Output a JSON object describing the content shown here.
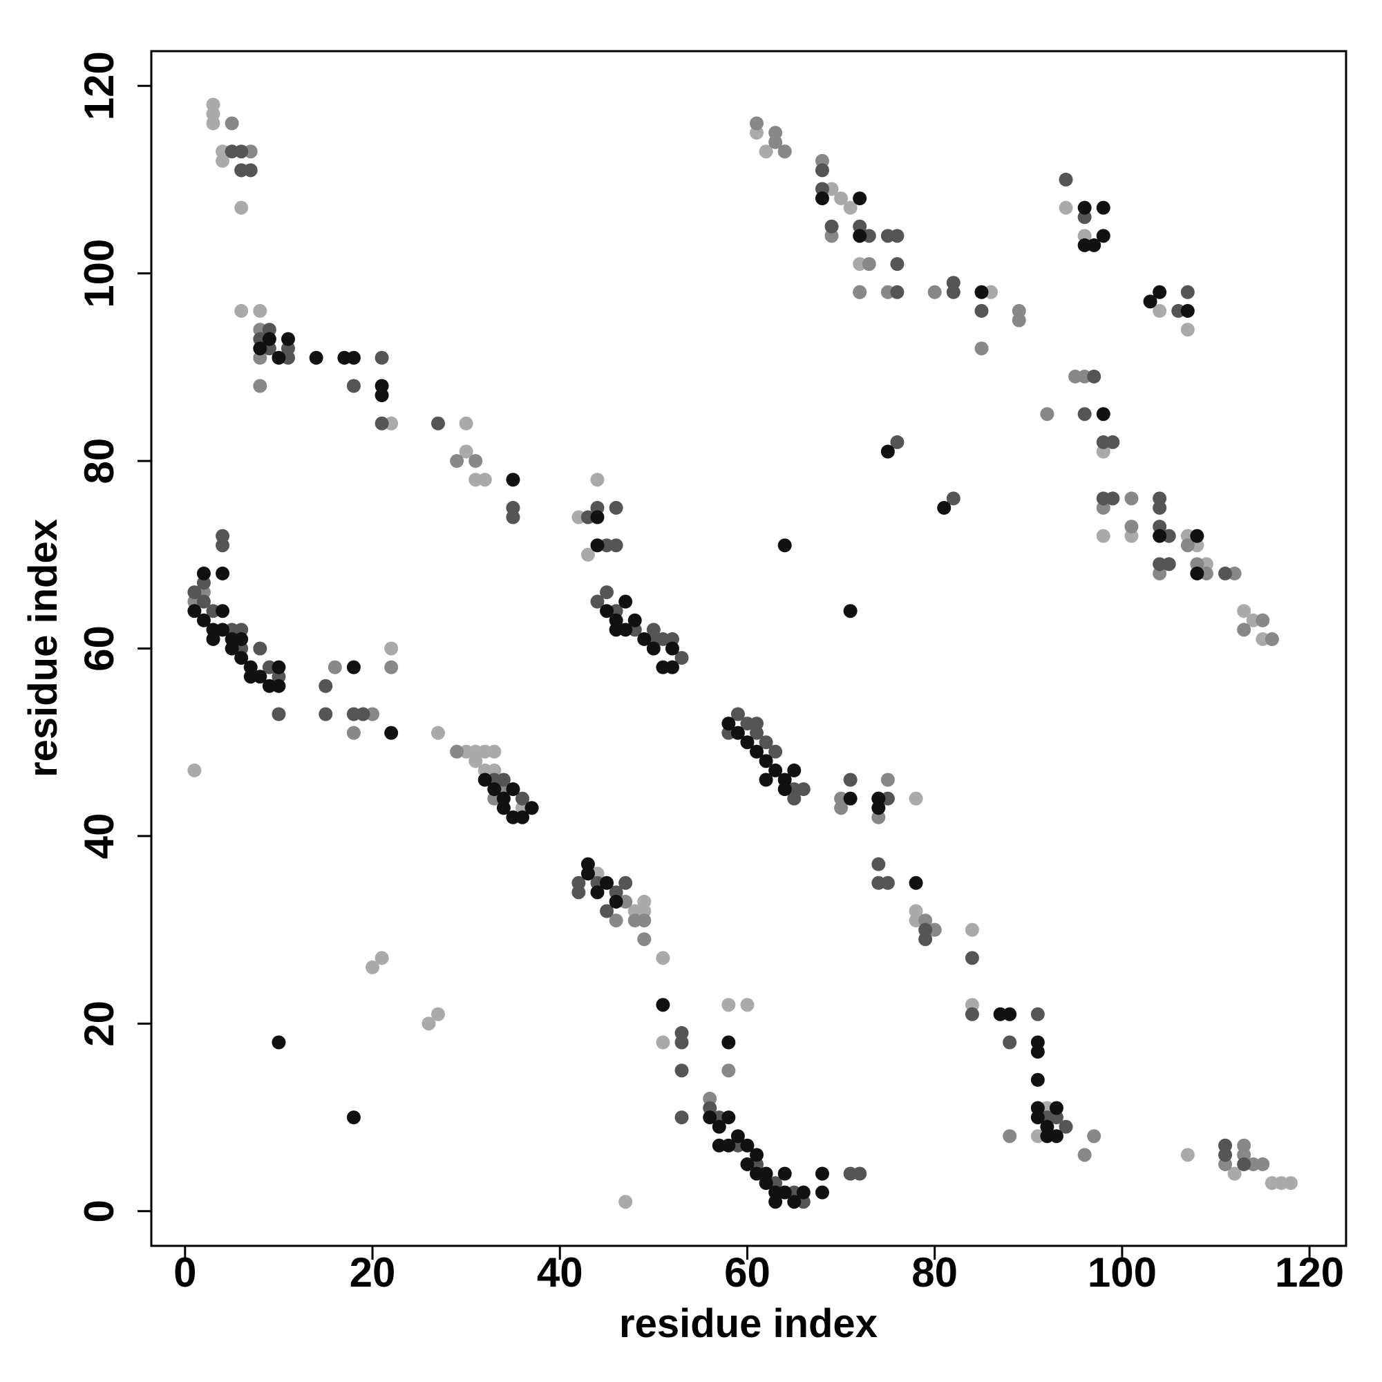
{
  "chart_data": {
    "type": "scatter",
    "x_label": "residue index",
    "y_label": "residue index",
    "xlim": [
      -3.6,
      123.9
    ],
    "ylim": [
      -3.7,
      123.7
    ],
    "xticks": [
      0,
      20,
      40,
      60,
      80,
      100,
      120
    ],
    "yticks": [
      0,
      20,
      40,
      60,
      80,
      100,
      120
    ],
    "series": [
      {
        "color": "#aaaaaa",
        "x": [
          3,
          3,
          3,
          4,
          4,
          6,
          6,
          6,
          8,
          1,
          20,
          21,
          26,
          27,
          27,
          22,
          22,
          30,
          30,
          31,
          32,
          30,
          31,
          32,
          33,
          31,
          32,
          33,
          36,
          42,
          43,
          44,
          44,
          47,
          48,
          49,
          49,
          47,
          51,
          51,
          58,
          60,
          61,
          62,
          64,
          69,
          70,
          71,
          72,
          73,
          72,
          78,
          78,
          78,
          80,
          84,
          84,
          86,
          94,
          96,
          98,
          98,
          101,
          104,
          107,
          107,
          108,
          109,
          113,
          114,
          115,
          116,
          117,
          118,
          116,
          112,
          107,
          91,
          92
        ],
        "values": [
          118,
          117,
          116,
          112,
          113,
          111,
          107,
          96,
          96,
          47,
          26,
          27,
          20,
          21,
          51,
          84,
          60,
          84,
          81,
          78,
          78,
          49,
          49,
          49,
          49,
          48,
          47,
          47,
          43,
          74,
          70,
          78,
          36,
          33,
          32,
          33,
          32,
          1,
          27,
          18,
          22,
          22,
          115,
          113,
          113,
          109,
          108,
          107,
          101,
          101,
          98,
          44,
          32,
          31,
          30,
          30,
          22,
          98,
          107,
          104,
          81,
          72,
          72,
          96,
          94,
          72,
          71,
          69,
          64,
          63,
          61,
          61,
          3,
          3,
          3,
          4,
          6,
          8,
          11
        ]
      },
      {
        "color": "#888888",
        "x": [
          1,
          2,
          8,
          8,
          8,
          5,
          7,
          16,
          20,
          18,
          22,
          29,
          29,
          31,
          33,
          34,
          46,
          47,
          48,
          49,
          49,
          58,
          56,
          61,
          63,
          63,
          64,
          68,
          69,
          70,
          70,
          74,
          75,
          79,
          80,
          88,
          96,
          97,
          92,
          95,
          96,
          98,
          101,
          101,
          89,
          89,
          85,
          80,
          104,
          107,
          108,
          109,
          112,
          113,
          115,
          116,
          111,
          113,
          113,
          114,
          115,
          73,
          72,
          75
        ],
        "values": [
          65,
          66,
          94,
          91,
          88,
          116,
          113,
          58,
          53,
          51,
          58,
          49,
          80,
          80,
          44,
          45,
          31,
          33,
          31,
          29,
          31,
          15,
          12,
          116,
          115,
          114,
          113,
          112,
          104,
          43,
          44,
          42,
          46,
          31,
          30,
          8,
          6,
          8,
          85,
          89,
          89,
          75,
          76,
          73,
          95,
          96,
          92,
          98,
          68,
          71,
          69,
          68,
          68,
          62,
          63,
          61,
          5,
          7,
          6,
          5,
          5,
          101,
          98,
          98
        ]
      },
      {
        "color": "#555555",
        "x": [
          1,
          2,
          2,
          3,
          4,
          4,
          5,
          5,
          6,
          6,
          8,
          9,
          10,
          10,
          11,
          11,
          9,
          8,
          9,
          15,
          15,
          18,
          18,
          19,
          21,
          21,
          27,
          35,
          35,
          45,
          46,
          46,
          44,
          43,
          45,
          44,
          46,
          48,
          50,
          50,
          51,
          52,
          53,
          58,
          59,
          60,
          61,
          61,
          62,
          63,
          65,
          65,
          66,
          71,
          74,
          75,
          74,
          74,
          75,
          79,
          79,
          84,
          84,
          82,
          76,
          44,
          42,
          42,
          45,
          46,
          47,
          34,
          33,
          36,
          53,
          53,
          53,
          53,
          56,
          57,
          59,
          61,
          63,
          65,
          66,
          71,
          72,
          88,
          91,
          92,
          94,
          93,
          68,
          68,
          69,
          72,
          73,
          75,
          76,
          76,
          76,
          82,
          82,
          85,
          94,
          96,
          97,
          96,
          98,
          99,
          98,
          99,
          104,
          104,
          104,
          104,
          105,
          106,
          107,
          105,
          111,
          111,
          111,
          113,
          6,
          7,
          6
        ],
        "values": [
          66,
          67,
          65,
          64,
          72,
          71,
          113,
          62,
          62,
          60,
          60,
          58,
          57,
          53,
          91,
          92,
          92,
          93,
          94,
          56,
          53,
          88,
          53,
          53,
          91,
          84,
          84,
          75,
          74,
          71,
          71,
          75,
          75,
          74,
          66,
          65,
          64,
          62,
          62,
          61,
          61,
          61,
          59,
          51,
          53,
          52,
          52,
          51,
          50,
          49,
          45,
          44,
          45,
          46,
          44,
          44,
          37,
          35,
          35,
          30,
          29,
          27,
          21,
          76,
          82,
          35,
          34,
          35,
          32,
          34,
          35,
          46,
          46,
          44,
          19,
          18,
          15,
          10,
          11,
          10,
          7,
          5,
          3,
          2,
          1,
          4,
          4,
          18,
          21,
          10,
          9,
          10,
          111,
          109,
          105,
          105,
          104,
          104,
          104,
          101,
          98,
          99,
          98,
          96,
          110,
          106,
          89,
          85,
          82,
          82,
          76,
          76,
          76,
          75,
          73,
          69,
          69,
          96,
          98,
          72,
          68,
          7,
          6,
          5,
          113,
          111,
          111
        ]
      },
      {
        "color": "#111111",
        "x": [
          2,
          4,
          1,
          2,
          3,
          4,
          3,
          5,
          6,
          7,
          7,
          8,
          9,
          10,
          10,
          4,
          5,
          6,
          8,
          9,
          10,
          11,
          14,
          17,
          18,
          21,
          21,
          22,
          18,
          10,
          18,
          35,
          44,
          44,
          32,
          33,
          34,
          34,
          35,
          36,
          37,
          35,
          43,
          43,
          44,
          45,
          46,
          45,
          46,
          47,
          47,
          48,
          49,
          50,
          51,
          52,
          52,
          46,
          58,
          59,
          60,
          61,
          62,
          63,
          64,
          65,
          62,
          64,
          71,
          74,
          74,
          78,
          75,
          81,
          64,
          71,
          51,
          58,
          56,
          57,
          57,
          58,
          59,
          60,
          60,
          61,
          62,
          62,
          63,
          63,
          64,
          64,
          65,
          66,
          68,
          68,
          58,
          61,
          87,
          88,
          91,
          91,
          91,
          91,
          91,
          92,
          92,
          93,
          93,
          68,
          72,
          72,
          96,
          96,
          97,
          98,
          98,
          103,
          104,
          107,
          98,
          85,
          104,
          108,
          108
        ],
        "values": [
          68,
          68,
          64,
          63,
          62,
          64,
          61,
          60,
          59,
          58,
          57,
          57,
          56,
          58,
          56,
          62,
          61,
          61,
          92,
          93,
          91,
          93,
          91,
          91,
          91,
          88,
          87,
          51,
          58,
          18,
          10,
          78,
          74,
          71,
          46,
          45,
          44,
          43,
          42,
          42,
          43,
          45,
          36,
          37,
          34,
          35,
          33,
          64,
          63,
          65,
          62,
          63,
          61,
          60,
          58,
          58,
          60,
          62,
          52,
          51,
          50,
          49,
          48,
          47,
          46,
          47,
          46,
          45,
          44,
          44,
          43,
          35,
          81,
          75,
          71,
          64,
          22,
          18,
          10,
          9,
          7,
          10,
          8,
          7,
          5,
          6,
          4,
          3,
          2,
          1,
          4,
          2,
          1,
          2,
          2,
          4,
          7,
          4,
          21,
          21,
          18,
          17,
          14,
          11,
          10,
          9,
          8,
          11,
          8,
          108,
          108,
          104,
          107,
          103,
          103,
          107,
          104,
          97,
          98,
          96,
          85,
          98,
          72,
          72,
          68
        ]
      }
    ]
  }
}
